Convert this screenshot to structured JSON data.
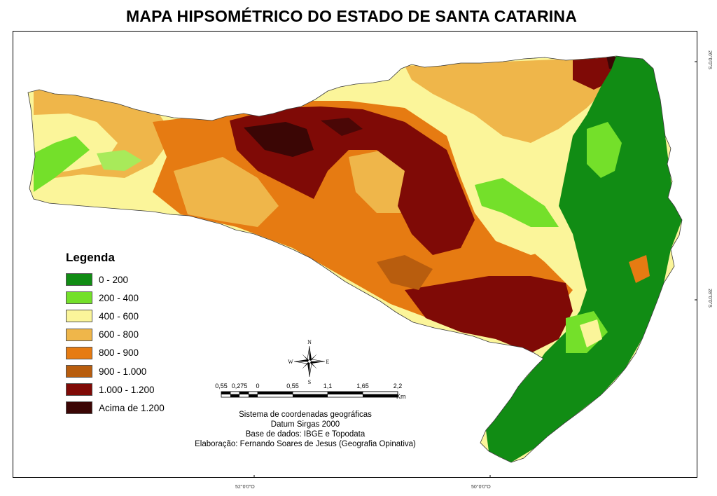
{
  "title": "MAPA HIPSOMÉTRICO DO ESTADO DE SANTA CATARINA",
  "legend": {
    "title": "Legenda",
    "items": [
      {
        "label": "0 - 200",
        "color": "#118c14"
      },
      {
        "label": "200 - 400",
        "color": "#74e02a"
      },
      {
        "label": "400 - 600",
        "color": "#fbf59a"
      },
      {
        "label": "600 - 800",
        "color": "#efb64a"
      },
      {
        "label": "800 - 900",
        "color": "#e67b12"
      },
      {
        "label": "900 - 1.000",
        "color": "#b85d0e"
      },
      {
        "label": "1.000 - 1.200",
        "color": "#7f0a06"
      },
      {
        "label": "Acima de 1.200",
        "color": "#3b0605"
      }
    ]
  },
  "axes": {
    "bottom": [
      "52°0'0\"O",
      "50°0'0\"O"
    ],
    "right": [
      "26°0'0\"S",
      "28°0'0\"S"
    ]
  },
  "scale_bar": {
    "labels": [
      "0,55",
      "0,275",
      "0",
      "0,55",
      "1,1",
      "1,65",
      "2,2"
    ],
    "unit": "Km"
  },
  "compass": {
    "n": "N",
    "s": "S",
    "e": "E",
    "w": "W"
  },
  "credits": {
    "line1": "Sistema de coordenadas geográficas",
    "line2": "Datum Sirgas 2000",
    "line3": "Base de dados: IBGE e Topodata",
    "line4": "Elaboração: Fernando Soares de Jesus (Geografia Opinativa)"
  }
}
